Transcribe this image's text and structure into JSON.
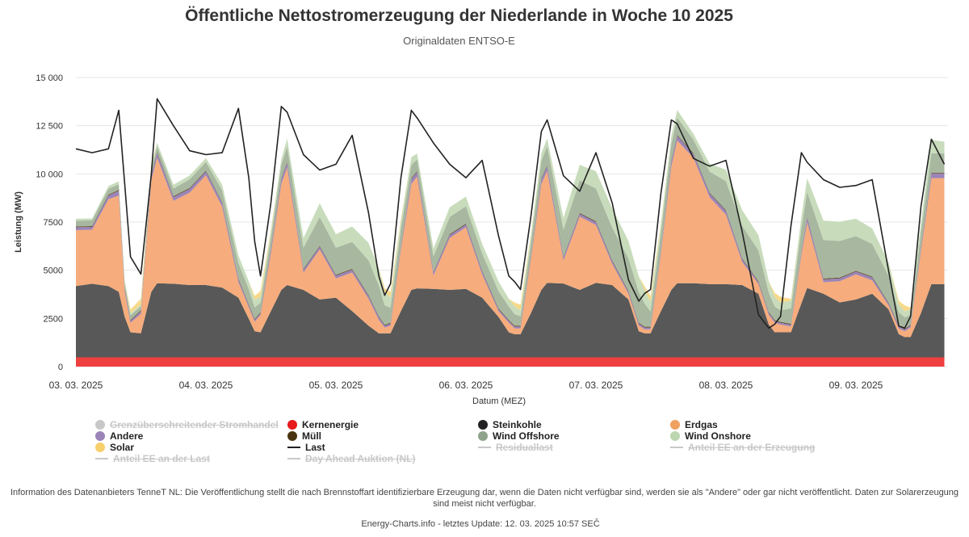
{
  "title": "Öffentliche Nettostromerzeugung der Niederlande in Woche 10 2025",
  "subtitle": "Originaldaten ENTSO-E",
  "footer": {
    "info": "Information des Datenanbieters TenneT NL: Die Veröffentlichung stellt die nach Brennstoffart identifizierbare Erzeugung dar, wenn die Daten nicht verfügbar sind, werden sie als \"Andere\" oder gar nicht veröffentlicht. Daten zur Solarerzeugung sind meist nicht verfügbar.",
    "credit": "Energy-Charts.info - letztes Update: 12. 03. 2025 10:57 SEČ"
  },
  "legend": [
    {
      "label": "Grenzüberschreitender Stromhandel",
      "color": "#c8c8c8",
      "kind": "dot",
      "enabled": false
    },
    {
      "label": "Kernenergie",
      "color": "#e6191d",
      "kind": "dot",
      "enabled": true
    },
    {
      "label": "Steinkohle",
      "color": "#222222",
      "kind": "dot",
      "enabled": true
    },
    {
      "label": "Erdgas",
      "color": "#f0a060",
      "kind": "dot",
      "enabled": true
    },
    {
      "label": "Andere",
      "color": "#9b85b8",
      "kind": "dot",
      "enabled": true
    },
    {
      "label": "Müll",
      "color": "#4a3310",
      "kind": "dot",
      "enabled": true
    },
    {
      "label": "Wind Offshore",
      "color": "#8fa38a",
      "kind": "dot",
      "enabled": true
    },
    {
      "label": "Wind Onshore",
      "color": "#bcd6b0",
      "kind": "dot",
      "enabled": true
    },
    {
      "label": "Solar",
      "color": "#f7cf6b",
      "kind": "dot",
      "enabled": true
    },
    {
      "label": "Last",
      "color": "#222222",
      "kind": "line",
      "enabled": true
    },
    {
      "label": "Residuallast",
      "color": "#c8c8c8",
      "kind": "line",
      "enabled": false
    },
    {
      "label": "Anteil EE an der Erzeugung",
      "color": "#c8c8c8",
      "kind": "line",
      "enabled": false
    },
    {
      "label": "Anteil EE an der Last",
      "color": "#c8c8c8",
      "kind": "line",
      "enabled": false
    },
    {
      "label": "Day Ahead Auktion (NL)",
      "color": "#c8c8c8",
      "kind": "line",
      "enabled": false
    }
  ],
  "chart_data": {
    "type": "area",
    "stacked": true,
    "xlabel": "Datum (MEZ)",
    "ylabel": "Leistung (MW)",
    "ylim": [
      0,
      15000
    ],
    "yticks": [
      0,
      2500,
      5000,
      7500,
      10000,
      12500,
      15000
    ],
    "ytick_labels": [
      "0",
      "2500",
      "5000",
      "7500",
      "10 000",
      "12 500",
      "15 000"
    ],
    "grid": true,
    "xlim": [
      0,
      6.68
    ],
    "xticks": [
      0,
      1,
      2,
      3,
      4,
      5,
      6
    ],
    "xtick_labels": [
      "03. 03. 2025",
      "04. 03. 2025",
      "05. 03. 2025",
      "06. 03. 2025",
      "07. 03. 2025",
      "08. 03. 2025",
      "09. 03. 2025"
    ],
    "x": [
      0,
      0.125,
      0.25,
      0.33,
      0.375,
      0.42,
      0.5,
      0.58,
      0.625,
      0.75,
      0.875,
      1,
      1.125,
      1.25,
      1.33,
      1.375,
      1.42,
      1.5,
      1.58,
      1.625,
      1.75,
      1.875,
      2,
      2.125,
      2.25,
      2.33,
      2.375,
      2.42,
      2.5,
      2.58,
      2.625,
      2.75,
      2.875,
      3,
      3.125,
      3.25,
      3.33,
      3.375,
      3.42,
      3.5,
      3.58,
      3.625,
      3.75,
      3.875,
      4,
      4.125,
      4.25,
      4.33,
      4.375,
      4.42,
      4.5,
      4.58,
      4.625,
      4.75,
      4.875,
      5,
      5.125,
      5.25,
      5.33,
      5.375,
      5.42,
      5.5,
      5.58,
      5.625,
      5.75,
      5.875,
      6,
      6.125,
      6.25,
      6.33,
      6.375,
      6.42,
      6.5,
      6.58,
      6.68
    ],
    "series": [
      {
        "name": "Kernenergie",
        "color": "#ef4040",
        "values": [
          480,
          480,
          480,
          480,
          480,
          480,
          480,
          480,
          480,
          480,
          480,
          480,
          480,
          480,
          480,
          480,
          480,
          480,
          480,
          480,
          480,
          480,
          480,
          480,
          480,
          480,
          480,
          480,
          480,
          480,
          480,
          480,
          480,
          480,
          480,
          480,
          480,
          480,
          480,
          480,
          480,
          480,
          480,
          480,
          480,
          480,
          480,
          480,
          480,
          480,
          480,
          480,
          480,
          480,
          480,
          480,
          480,
          480,
          480,
          480,
          480,
          480,
          480,
          480,
          480,
          480,
          480,
          480,
          480,
          480,
          480,
          480,
          480,
          480,
          480
        ]
      },
      {
        "name": "Steinkohle",
        "color": "#585858",
        "values": [
          3700,
          3820,
          3700,
          3400,
          2100,
          1300,
          1250,
          3400,
          3850,
          3820,
          3750,
          3750,
          3620,
          3100,
          2000,
          1350,
          1300,
          2400,
          3500,
          3750,
          3500,
          3000,
          3100,
          2400,
          1650,
          1250,
          1250,
          1250,
          2400,
          3500,
          3580,
          3550,
          3500,
          3550,
          3100,
          2100,
          1300,
          1200,
          1200,
          2300,
          3500,
          3870,
          3830,
          3500,
          3870,
          3750,
          3000,
          1350,
          1250,
          1250,
          2400,
          3500,
          3850,
          3850,
          3800,
          3800,
          3750,
          3300,
          1700,
          1300,
          1300,
          1300,
          2800,
          3600,
          3300,
          2850,
          3000,
          3300,
          2500,
          1200,
          1050,
          1050,
          2300,
          3800,
          3800
        ]
      },
      {
        "name": "Erdgas",
        "color": "#f6ac7c",
        "values": [
          2900,
          2800,
          4500,
          5000,
          1300,
          500,
          1000,
          5800,
          6500,
          4300,
          4800,
          5700,
          4200,
          800,
          600,
          500,
          900,
          3000,
          5500,
          6100,
          900,
          2600,
          1000,
          2000,
          1400,
          700,
          300,
          400,
          3200,
          5500,
          5800,
          700,
          2700,
          3200,
          1200,
          300,
          500,
          300,
          300,
          2800,
          5500,
          5800,
          1200,
          3800,
          3000,
          1100,
          300,
          300,
          200,
          200,
          3000,
          6400,
          7400,
          6500,
          4500,
          3600,
          1200,
          500,
          500,
          500,
          400,
          300,
          2500,
          3400,
          600,
          1100,
          1300,
          700,
          200,
          300,
          300,
          500,
          3200,
          5500,
          5500
        ]
      },
      {
        "name": "Andere",
        "color": "#9b85b8",
        "values": [
          150,
          150,
          200,
          250,
          150,
          100,
          150,
          250,
          250,
          200,
          200,
          200,
          200,
          150,
          100,
          100,
          100,
          200,
          250,
          250,
          150,
          150,
          150,
          150,
          150,
          150,
          100,
          100,
          150,
          250,
          250,
          150,
          150,
          150,
          150,
          100,
          100,
          100,
          100,
          150,
          250,
          250,
          150,
          150,
          150,
          150,
          100,
          100,
          100,
          100,
          150,
          250,
          250,
          200,
          200,
          200,
          150,
          100,
          100,
          100,
          100,
          100,
          150,
          250,
          150,
          150,
          150,
          150,
          100,
          100,
          100,
          100,
          150,
          250,
          250
        ]
      },
      {
        "name": "Müll",
        "color": "#5a4520",
        "values": [
          40,
          40,
          40,
          40,
          40,
          40,
          40,
          40,
          40,
          40,
          40,
          40,
          40,
          40,
          40,
          40,
          40,
          40,
          40,
          40,
          40,
          40,
          40,
          40,
          40,
          40,
          40,
          40,
          40,
          40,
          40,
          40,
          40,
          40,
          40,
          40,
          40,
          40,
          40,
          40,
          40,
          40,
          40,
          40,
          40,
          40,
          40,
          40,
          40,
          40,
          40,
          40,
          40,
          40,
          40,
          40,
          40,
          40,
          40,
          40,
          40,
          40,
          40,
          40,
          40,
          40,
          40,
          40,
          40,
          40,
          40,
          40,
          40,
          40,
          40
        ]
      },
      {
        "name": "Wind Offshore",
        "color": "#a8b8a0",
        "values": [
          300,
          300,
          300,
          300,
          250,
          250,
          200,
          300,
          300,
          400,
          450,
          450,
          600,
          800,
          800,
          600,
          500,
          600,
          700,
          800,
          1100,
          1500,
          1400,
          1400,
          1800,
          1600,
          1000,
          800,
          900,
          700,
          600,
          800,
          900,
          900,
          900,
          900,
          700,
          600,
          500,
          700,
          900,
          1000,
          1400,
          1700,
          1700,
          1700,
          1700,
          1600,
          1200,
          800,
          900,
          900,
          900,
          700,
          1100,
          1500,
          1700,
          1600,
          1000,
          700,
          600,
          800,
          1200,
          1300,
          2000,
          1900,
          1800,
          1700,
          1400,
          700,
          600,
          500,
          800,
          1000,
          1000
        ]
      },
      {
        "name": "Wind Onshore",
        "color": "#c8dcbc",
        "values": [
          100,
          100,
          150,
          150,
          150,
          100,
          100,
          150,
          200,
          200,
          200,
          200,
          300,
          400,
          400,
          400,
          300,
          300,
          300,
          400,
          500,
          700,
          700,
          800,
          900,
          900,
          700,
          500,
          400,
          400,
          300,
          400,
          500,
          500,
          500,
          500,
          400,
          400,
          300,
          300,
          400,
          400,
          600,
          800,
          900,
          1000,
          900,
          800,
          700,
          500,
          400,
          400,
          400,
          300,
          400,
          600,
          800,
          800,
          600,
          500,
          400,
          400,
          600,
          700,
          1000,
          1000,
          900,
          800,
          700,
          400,
          300,
          300,
          500,
          700,
          600
        ]
      },
      {
        "name": "Solar",
        "color": "#f7d98a",
        "values": [
          0,
          0,
          0,
          0,
          0,
          200,
          300,
          100,
          0,
          0,
          0,
          0,
          0,
          0,
          0,
          200,
          300,
          100,
          0,
          0,
          0,
          0,
          0,
          0,
          0,
          0,
          200,
          300,
          100,
          0,
          0,
          0,
          0,
          0,
          0,
          0,
          0,
          200,
          300,
          100,
          0,
          0,
          0,
          0,
          0,
          0,
          0,
          0,
          200,
          300,
          100,
          0,
          0,
          0,
          0,
          0,
          0,
          0,
          0,
          200,
          300,
          100,
          0,
          0,
          0,
          0,
          0,
          0,
          0,
          200,
          300,
          100,
          0,
          0,
          0
        ]
      }
    ],
    "line": {
      "name": "Last",
      "color": "#222222",
      "values": [
        11300,
        11100,
        11300,
        13300,
        9500,
        5700,
        4800,
        10000,
        13900,
        12500,
        11200,
        11000,
        11100,
        13400,
        9800,
        6500,
        4700,
        8500,
        13500,
        13200,
        11000,
        10200,
        10500,
        12000,
        8000,
        4700,
        3700,
        4300,
        9800,
        13300,
        12900,
        11600,
        10500,
        9800,
        10700,
        6800,
        4700,
        4400,
        4000,
        7800,
        12200,
        12800,
        9900,
        9100,
        11100,
        8500,
        4500,
        3400,
        3800,
        4000,
        9000,
        12800,
        12600,
        10800,
        10400,
        10700,
        7000,
        2700,
        2000,
        2200,
        2600,
        7300,
        11100,
        10600,
        9700,
        9300,
        9400,
        9700,
        5000,
        2100,
        2000,
        2600,
        8300,
        11800,
        10500
      ]
    }
  }
}
